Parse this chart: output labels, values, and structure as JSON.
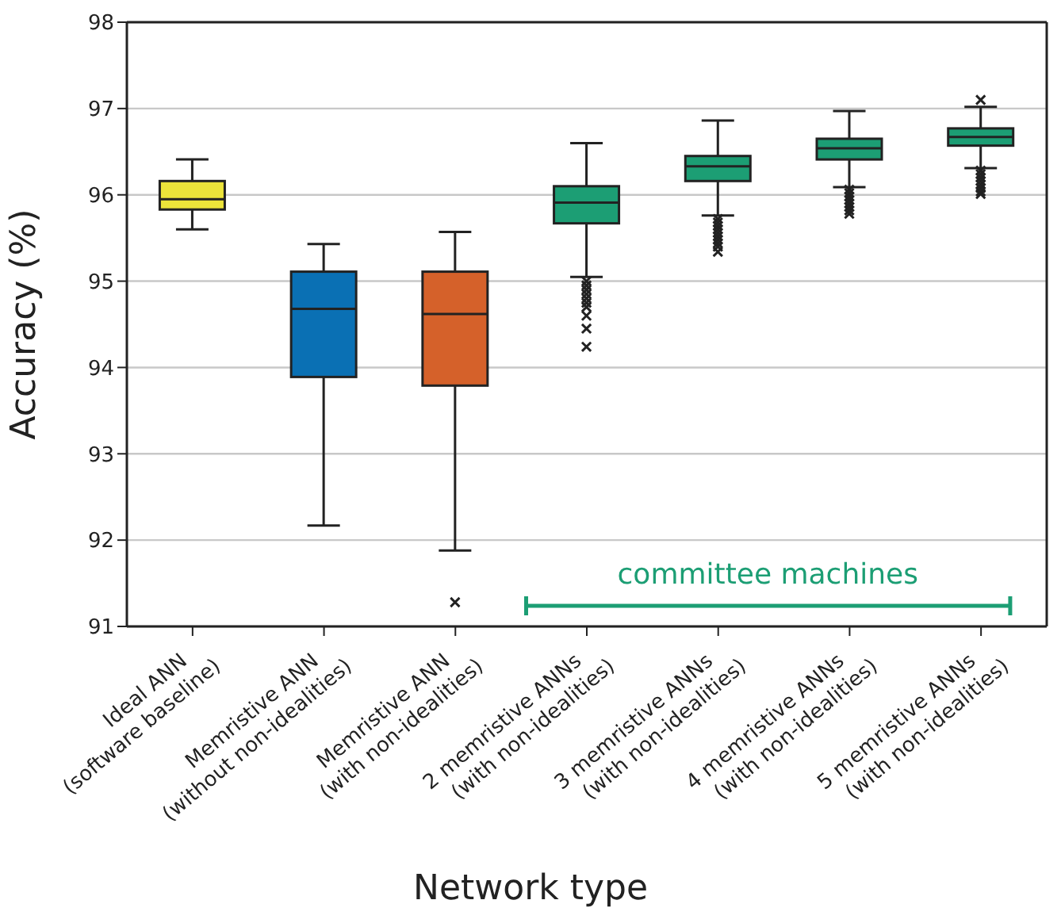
{
  "chart_data": {
    "type": "box",
    "xlabel": "Network type",
    "ylabel": "Accuracy (%)",
    "categories": [
      "Ideal ANN (software baseline)",
      "Memristive ANN (without non-idealities)",
      "Memristive ANN (with non-idealities)",
      "2 memristive ANNs (with non-idealities)",
      "3 memristive ANNs (with non-idealities)",
      "4 memristive ANNs (with non-idealities)",
      "5 memristive ANNs (with non-idealities)"
    ],
    "colors": [
      "#ece43a",
      "#0a70b4",
      "#d5612a",
      "#1c9e74",
      "#1c9e74",
      "#1c9e74",
      "#1c9e74"
    ],
    "boxes": [
      {
        "low": 95.6,
        "q1": 95.83,
        "median": 95.95,
        "q3": 96.16,
        "high": 96.41
      },
      {
        "low": 92.17,
        "q1": 93.89,
        "median": 94.68,
        "q3": 95.11,
        "high": 95.43
      },
      {
        "low": 91.88,
        "q1": 93.79,
        "median": 94.62,
        "q3": 95.11,
        "high": 95.57,
        "outliers": [
          91.28
        ]
      },
      {
        "low": 95.05,
        "q1": 95.67,
        "median": 95.91,
        "q3": 96.1,
        "high": 96.6,
        "outliers": [
          95.0,
          94.95,
          94.9,
          94.85,
          94.8,
          94.75,
          94.7,
          94.6,
          94.45,
          94.24
        ]
      },
      {
        "low": 95.76,
        "q1": 96.16,
        "median": 96.33,
        "q3": 96.45,
        "high": 96.86,
        "outliers": [
          95.72,
          95.68,
          95.64,
          95.6,
          95.56,
          95.52,
          95.48,
          95.44,
          95.4,
          95.34
        ]
      },
      {
        "low": 96.09,
        "q1": 96.41,
        "median": 96.54,
        "q3": 96.65,
        "high": 96.97,
        "outliers": [
          96.06,
          96.02,
          95.98,
          95.94,
          95.9,
          95.86,
          95.82,
          95.78
        ]
      },
      {
        "low": 96.31,
        "q1": 96.57,
        "median": 96.67,
        "q3": 96.77,
        "high": 97.02,
        "outliers": [
          96.28,
          96.24,
          96.2,
          96.16,
          96.12,
          96.08,
          96.04,
          96.01,
          97.1
        ]
      }
    ],
    "ylim": [
      91,
      98
    ],
    "yticks": [
      91,
      92,
      93,
      94,
      95,
      96,
      97,
      98
    ],
    "grid": "y",
    "marker": "cross",
    "annotations": [
      "committee machines"
    ]
  }
}
